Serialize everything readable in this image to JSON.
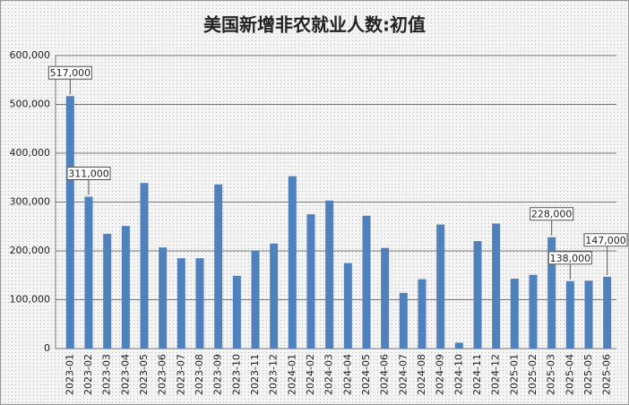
{
  "chart_data": {
    "type": "bar",
    "title": "美国新增非农就业人数:初值",
    "categories": [
      "2023-01",
      "2023-02",
      "2023-03",
      "2023-04",
      "2023-05",
      "2023-06",
      "2023-07",
      "2023-08",
      "2023-09",
      "2023-10",
      "2023-11",
      "2023-12",
      "2024-01",
      "2024-02",
      "2024-03",
      "2024-04",
      "2024-05",
      "2024-06",
      "2024-07",
      "2024-08",
      "2024-09",
      "2024-10",
      "2024-11",
      "2024-12",
      "2025-01",
      "2025-02",
      "2025-03",
      "2025-04",
      "2025-05",
      "2025-06"
    ],
    "values": [
      517000,
      311000,
      235000,
      251000,
      339000,
      207000,
      185000,
      185000,
      336000,
      149000,
      200000,
      215000,
      353000,
      275000,
      303000,
      175000,
      272000,
      206000,
      114000,
      142000,
      254000,
      12000,
      220000,
      256000,
      143000,
      151000,
      228000,
      138000,
      139000,
      147000
    ],
    "value_labels": [
      "517,000",
      "311,000",
      null,
      null,
      null,
      null,
      null,
      null,
      null,
      null,
      null,
      null,
      null,
      null,
      null,
      null,
      null,
      null,
      null,
      null,
      null,
      null,
      null,
      null,
      null,
      null,
      "228,000",
      "138,000",
      null,
      "147,000"
    ],
    "color": "#4f81bd",
    "ylim": [
      0,
      600000
    ],
    "yticks": [
      {
        "value": 0,
        "label": "0"
      },
      {
        "value": 100000,
        "label": "100,000"
      },
      {
        "value": 200000,
        "label": "200,000"
      },
      {
        "value": 300000,
        "label": "300,000"
      },
      {
        "value": 400000,
        "label": "400,000"
      },
      {
        "value": 500000,
        "label": "500,000"
      },
      {
        "value": 600000,
        "label": "600,000"
      }
    ],
    "grid": true
  }
}
